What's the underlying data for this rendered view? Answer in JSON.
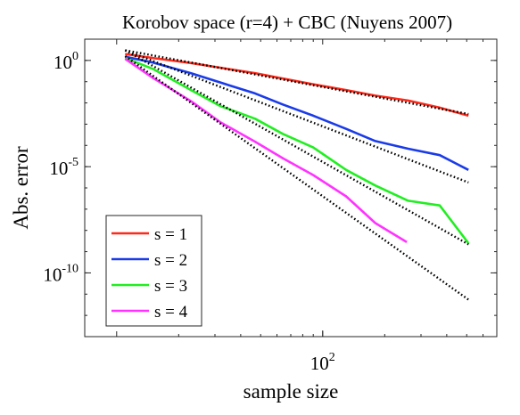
{
  "chart_data": {
    "type": "line",
    "title": "Korobov space (r=4) + CBC (Nuyens 2007)",
    "xlabel": "sample size",
    "ylabel": "Abs. error",
    "xscale": "log",
    "yscale": "log",
    "xlim": [
      7,
      700
    ],
    "ylim": [
      1e-13,
      10
    ],
    "xticks": [
      {
        "value": 100,
        "base": "10",
        "exp": "2"
      }
    ],
    "yticks": [
      {
        "value": 1,
        "base": "10",
        "exp": "0"
      },
      {
        "value": 1e-05,
        "base": "10",
        "exp": "-5"
      },
      {
        "value": 1e-10,
        "base": "10",
        "exp": "-10"
      }
    ],
    "grid": false,
    "legend": {
      "position": "bottom-left"
    },
    "series": [
      {
        "name": "s = 1",
        "color": "#ff2a1a",
        "x": [
          11,
          15,
          23,
          32,
          47,
          64,
          90,
          130,
          180,
          260,
          370,
          510
        ],
        "y": [
          2.0,
          1.3,
          0.75,
          0.45,
          0.25,
          0.14,
          0.075,
          0.04,
          0.022,
          0.013,
          0.006,
          0.0025
        ]
      },
      {
        "name": "s = 2",
        "color": "#1a3be8",
        "x": [
          11,
          15,
          23,
          32,
          47,
          64,
          90,
          130,
          180,
          260,
          370,
          510
        ],
        "y": [
          1.5,
          0.8,
          0.25,
          0.09,
          0.028,
          0.0085,
          0.0025,
          0.0006,
          0.00016,
          7e-05,
          3.5e-05,
          7e-06
        ]
      },
      {
        "name": "s = 3",
        "color": "#22ee22",
        "x": [
          11,
          15,
          23,
          32,
          47,
          64,
          90,
          130,
          180,
          260,
          370,
          510
        ],
        "y": [
          1.3,
          0.4,
          0.04,
          0.007,
          0.0018,
          0.00035,
          8e-05,
          7e-06,
          1.3e-06,
          2.5e-07,
          1.5e-07,
          2.5e-09
        ]
      },
      {
        "name": "s = 4",
        "color": "#ff33ff",
        "x": [
          11,
          15,
          23,
          32,
          47,
          64,
          90,
          130,
          180,
          256
        ],
        "y": [
          1.2,
          0.15,
          0.012,
          0.0012,
          0.00015,
          2.5e-05,
          4e-06,
          4e-07,
          2.2e-08,
          2.8e-09
        ]
      }
    ],
    "reference_lines": {
      "style": "dotted",
      "color": "#000000",
      "lines": [
        {
          "x": [
            11,
            510
          ],
          "y": [
            3.0,
            0.003
          ]
        },
        {
          "x": [
            11,
            510
          ],
          "y": [
            3.0,
            1.8e-06
          ]
        },
        {
          "x": [
            11,
            510
          ],
          "y": [
            3.0,
            2.2e-09
          ]
        },
        {
          "x": [
            11,
            510
          ],
          "y": [
            1.6,
            5.5e-12
          ]
        }
      ]
    }
  }
}
